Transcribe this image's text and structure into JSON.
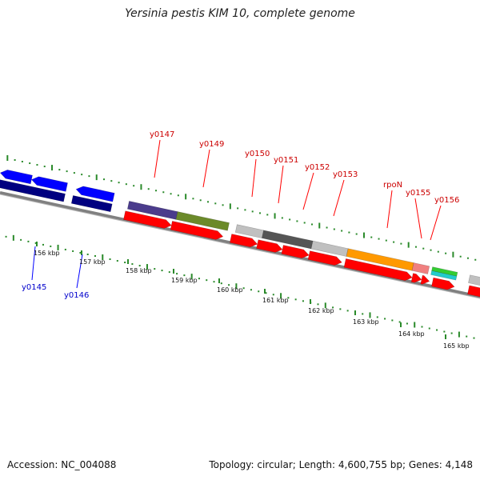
{
  "title": "Yersinia pestis KIM 10, complete genome",
  "footer": {
    "accession": "Accession: NC_004088",
    "summary": "Topology: circular; Length: 4,600,755 bp; Genes: 4,148"
  },
  "scale_labels": [
    "156 kbp",
    "157 kbp",
    "158 kbp",
    "159 kbp",
    "160 kbp",
    "161 kbp",
    "162 kbp",
    "163 kbp",
    "164 kbp",
    "165 kbp"
  ],
  "gene_labels_top": [
    "y0147",
    "y0149",
    "y0150",
    "y0151",
    "y0152",
    "y0153",
    "rpoN",
    "y0155",
    "y0156"
  ],
  "gene_labels_bottom": [
    "y0145",
    "y0146"
  ],
  "colors": {
    "cds_forward": "#ff0000",
    "cds_reverse": "#0000ff",
    "backbone": "#808080",
    "gc_ticks": "#2a8a2a",
    "cog_purple": "#4b3c8c",
    "cog_olive": "#6b8a2a",
    "cog_darkgray": "#555555",
    "cog_lightgray": "#c0c0c0",
    "cog_orange": "#ff9900",
    "cog_pink": "#f08080",
    "cog_green": "#33cc33",
    "cog_cyan": "#22cccc",
    "cog_navy": "#000080"
  }
}
